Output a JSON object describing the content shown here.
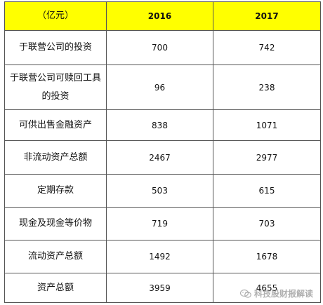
{
  "table": {
    "headers": [
      "（亿元）",
      "2016",
      "2017"
    ],
    "rows": [
      {
        "label": "于联营公司的投资",
        "v2016": "700",
        "v2017": "742"
      },
      {
        "label": "于联营公司可赎回工具的投资",
        "v2016": "96",
        "v2017": "238"
      },
      {
        "label": "可供出售金融资产",
        "v2016": "838",
        "v2017": "1071"
      },
      {
        "label": "非流动资产总额",
        "v2016": "2467",
        "v2017": "2977"
      },
      {
        "label": "定期存款",
        "v2016": "503",
        "v2017": "615"
      },
      {
        "label": "现金及现金等价物",
        "v2016": "719",
        "v2017": "703"
      },
      {
        "label": "流动资产总额",
        "v2016": "1492",
        "v2017": "1678"
      },
      {
        "label": "资产总额",
        "v2016": "3959",
        "v2017": "4655"
      }
    ]
  },
  "watermark": {
    "text": "科技股财报解读",
    "icon": "wechat-icon"
  },
  "colors": {
    "header_bg": "#ffff00",
    "border": "#555555"
  }
}
